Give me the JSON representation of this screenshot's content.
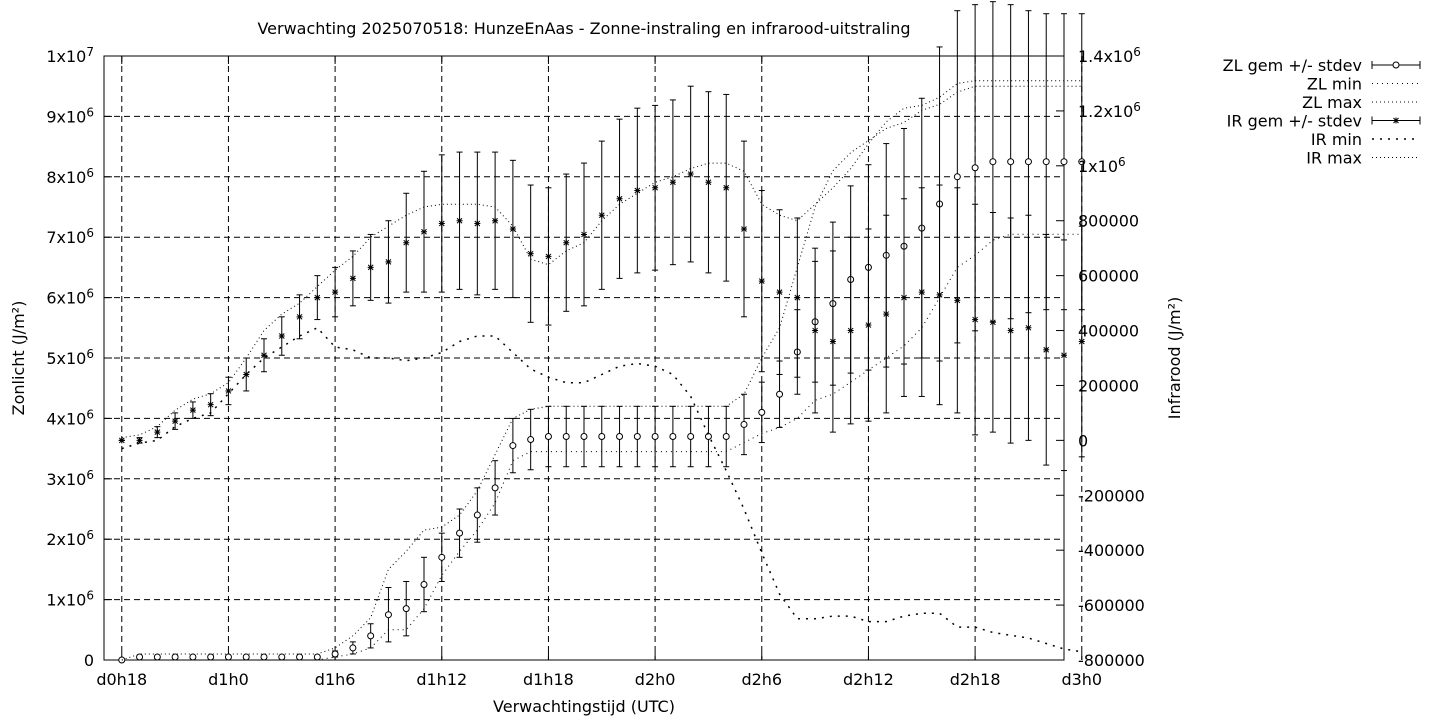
{
  "chart_data": {
    "type": "line",
    "title": "Verwachting 2025070518: HunzeEnAas - Zonne-instraling en infrarood-uitstraling",
    "xlabel": "Verwachtingstijd (UTC)",
    "ylabel_left": "Zonlicht (J/m²)",
    "ylabel_right": "Infrarood (J/m²)",
    "xlim": [
      -1,
      53
    ],
    "ylim_left": [
      0,
      10000000
    ],
    "ylim_right": [
      -800000,
      1400000
    ],
    "grid": true,
    "legend_position": "outside-right",
    "x_ticks": [
      {
        "x": 0,
        "label": "d0h18"
      },
      {
        "x": 6,
        "label": "d1h0"
      },
      {
        "x": 12,
        "label": "d1h6"
      },
      {
        "x": 18,
        "label": "d1h12"
      },
      {
        "x": 24,
        "label": "d1h18"
      },
      {
        "x": 30,
        "label": "d2h0"
      },
      {
        "x": 36,
        "label": "d2h6"
      },
      {
        "x": 42,
        "label": "d2h12"
      },
      {
        "x": 48,
        "label": "d2h18"
      },
      {
        "x": 54,
        "label": "d3h0"
      }
    ],
    "y_ticks_left": [
      {
        "v": 0,
        "label": "0"
      },
      {
        "v": 1000000,
        "label": "1x10",
        "sup": "6"
      },
      {
        "v": 2000000,
        "label": "2x10",
        "sup": "6"
      },
      {
        "v": 3000000,
        "label": "3x10",
        "sup": "6"
      },
      {
        "v": 4000000,
        "label": "4x10",
        "sup": "6"
      },
      {
        "v": 5000000,
        "label": "5x10",
        "sup": "6"
      },
      {
        "v": 6000000,
        "label": "6x10",
        "sup": "6"
      },
      {
        "v": 7000000,
        "label": "7x10",
        "sup": "6"
      },
      {
        "v": 8000000,
        "label": "8x10",
        "sup": "6"
      },
      {
        "v": 9000000,
        "label": "9x10",
        "sup": "6"
      },
      {
        "v": 10000000,
        "label": "1x10",
        "sup": "7"
      }
    ],
    "y_ticks_right": [
      {
        "v": -800000,
        "label": "-800000"
      },
      {
        "v": -600000,
        "label": "-600000"
      },
      {
        "v": -400000,
        "label": "-400000"
      },
      {
        "v": -200000,
        "label": "-200000"
      },
      {
        "v": 0,
        "label": "0"
      },
      {
        "v": 200000,
        "label": "200000"
      },
      {
        "v": 400000,
        "label": "400000"
      },
      {
        "v": 600000,
        "label": "600000"
      },
      {
        "v": 800000,
        "label": "800000"
      },
      {
        "v": 1000000,
        "label": "1x10",
        "sup": "6"
      },
      {
        "v": 1200000,
        "label": "1.2x10",
        "sup": "6"
      },
      {
        "v": 1400000,
        "label": "1.4x10",
        "sup": "6"
      }
    ],
    "x": [
      0,
      1,
      2,
      3,
      4,
      5,
      6,
      7,
      8,
      9,
      10,
      11,
      12,
      13,
      14,
      15,
      16,
      17,
      18,
      19,
      20,
      21,
      22,
      23,
      24,
      25,
      26,
      27,
      28,
      29,
      30,
      31,
      32,
      33,
      34,
      35,
      36,
      37,
      38,
      39,
      40,
      41,
      42,
      43,
      44,
      45,
      46,
      47,
      48,
      49,
      50,
      51,
      52,
      53,
      54
    ],
    "series": [
      {
        "name": "ZL gem +/- stdev",
        "axis": "left",
        "marker": "circle",
        "values": [
          0,
          50000,
          50000,
          50000,
          50000,
          50000,
          50000,
          50000,
          50000,
          50000,
          50000,
          50000,
          100000,
          200000,
          400000,
          750000,
          850000,
          1250000,
          1700000,
          2100000,
          2400000,
          2850000,
          3550000,
          3650000,
          3700000,
          3700000,
          3700000,
          3700000,
          3700000,
          3700000,
          3700000,
          3700000,
          3700000,
          3700000,
          3700000,
          3900000,
          4100000,
          4400000,
          5100000,
          5600000,
          5900000,
          6300000,
          6500000,
          6700000,
          6850000,
          7150000,
          7550000,
          8000000,
          8150000,
          8250000,
          8250000,
          8250000,
          8250000,
          8250000,
          8250000
        ],
        "stdev": [
          0,
          10000,
          10000,
          10000,
          10000,
          10000,
          10000,
          10000,
          10000,
          10000,
          10000,
          10000,
          50000,
          100000,
          200000,
          450000,
          450000,
          450000,
          400000,
          400000,
          450000,
          450000,
          450000,
          500000,
          500000,
          500000,
          500000,
          500000,
          500000,
          500000,
          500000,
          500000,
          500000,
          500000,
          500000,
          500000,
          500000,
          550000,
          700000,
          1000000,
          1350000,
          1550000,
          1700000,
          1850000,
          1950000,
          2150000,
          2600000,
          2750000,
          2700000,
          2650000,
          2600000,
          2500000,
          2450000,
          2450000,
          2450000
        ]
      },
      {
        "name": "ZL min",
        "axis": "left",
        "values": [
          0,
          0,
          0,
          0,
          0,
          0,
          0,
          0,
          0,
          0,
          0,
          0,
          50000,
          100000,
          200000,
          500000,
          500000,
          850000,
          1400000,
          1800000,
          2150000,
          2600000,
          3300000,
          3450000,
          3450000,
          3450000,
          3450000,
          3450000,
          3450000,
          3450000,
          3450000,
          3450000,
          3450000,
          3450000,
          3450000,
          3600000,
          3750000,
          3850000,
          4000000,
          4300000,
          4400000,
          4600000,
          4800000,
          5000000,
          5200000,
          5500000,
          6000000,
          6500000,
          6700000,
          6950000,
          7050000,
          7050000,
          7050000,
          7050000,
          7050000
        ]
      },
      {
        "name": "ZL max",
        "axis": "left",
        "values": [
          0,
          100000,
          100000,
          100000,
          100000,
          100000,
          100000,
          100000,
          100000,
          100000,
          100000,
          100000,
          200000,
          400000,
          700000,
          1500000,
          1800000,
          2150000,
          2200000,
          2400000,
          2800000,
          3400000,
          4000000,
          4150000,
          4200000,
          4200000,
          4200000,
          4200000,
          4200000,
          4200000,
          4200000,
          4200000,
          4200000,
          4200000,
          4200000,
          4400000,
          5000000,
          5500000,
          6500000,
          7500000,
          8100000,
          8400000,
          8600000,
          8800000,
          8900000,
          9100000,
          9200000,
          9400000,
          9500000,
          9500000,
          9500000,
          9500000,
          9500000,
          9500000,
          9500000
        ]
      },
      {
        "name": "IR gem +/- stdev",
        "axis": "right",
        "marker": "star",
        "values": [
          0,
          0,
          30000,
          70000,
          110000,
          130000,
          180000,
          240000,
          310000,
          380000,
          450000,
          520000,
          540000,
          590000,
          630000,
          650000,
          720000,
          760000,
          790000,
          800000,
          790000,
          800000,
          770000,
          680000,
          670000,
          720000,
          750000,
          820000,
          880000,
          910000,
          920000,
          940000,
          970000,
          940000,
          920000,
          770000,
          580000,
          540000,
          520000,
          400000,
          360000,
          400000,
          420000,
          460000,
          520000,
          540000,
          530000,
          510000,
          440000,
          430000,
          400000,
          410000,
          330000,
          310000,
          360000
        ],
        "stdev": [
          0,
          10000,
          20000,
          30000,
          30000,
          40000,
          50000,
          60000,
          60000,
          70000,
          80000,
          80000,
          90000,
          100000,
          120000,
          150000,
          180000,
          220000,
          250000,
          250000,
          260000,
          250000,
          250000,
          250000,
          250000,
          250000,
          260000,
          270000,
          290000,
          300000,
          300000,
          300000,
          320000,
          330000,
          340000,
          320000,
          330000,
          300000,
          290000,
          300000,
          330000,
          340000,
          350000,
          360000,
          360000,
          380000,
          400000,
          410000,
          420000,
          400000,
          410000,
          410000,
          420000,
          420000,
          420000
        ]
      },
      {
        "name": "IR min",
        "axis": "right",
        "values": [
          -30000,
          -10000,
          0,
          50000,
          80000,
          100000,
          170000,
          240000,
          300000,
          340000,
          380000,
          410000,
          340000,
          330000,
          300000,
          300000,
          290000,
          300000,
          320000,
          360000,
          380000,
          380000,
          320000,
          260000,
          230000,
          210000,
          210000,
          240000,
          270000,
          280000,
          270000,
          240000,
          160000,
          20000,
          -110000,
          -250000,
          -410000,
          -560000,
          -650000,
          -650000,
          -640000,
          -640000,
          -660000,
          -660000,
          -640000,
          -630000,
          -630000,
          -680000,
          -680000,
          -700000,
          -710000,
          -720000,
          -740000,
          -760000,
          -770000
        ]
      },
      {
        "name": "IR max",
        "axis": "right",
        "values": [
          10000,
          20000,
          50000,
          110000,
          150000,
          170000,
          210000,
          300000,
          400000,
          460000,
          500000,
          560000,
          620000,
          670000,
          740000,
          780000,
          820000,
          850000,
          860000,
          860000,
          860000,
          850000,
          780000,
          660000,
          640000,
          690000,
          720000,
          800000,
          860000,
          900000,
          940000,
          960000,
          990000,
          1010000,
          1010000,
          980000,
          860000,
          820000,
          800000,
          860000,
          920000,
          990000,
          1080000,
          1160000,
          1210000,
          1220000,
          1250000,
          1300000,
          1310000,
          1310000,
          1310000,
          1310000,
          1310000,
          1310000,
          1310000
        ]
      }
    ]
  }
}
